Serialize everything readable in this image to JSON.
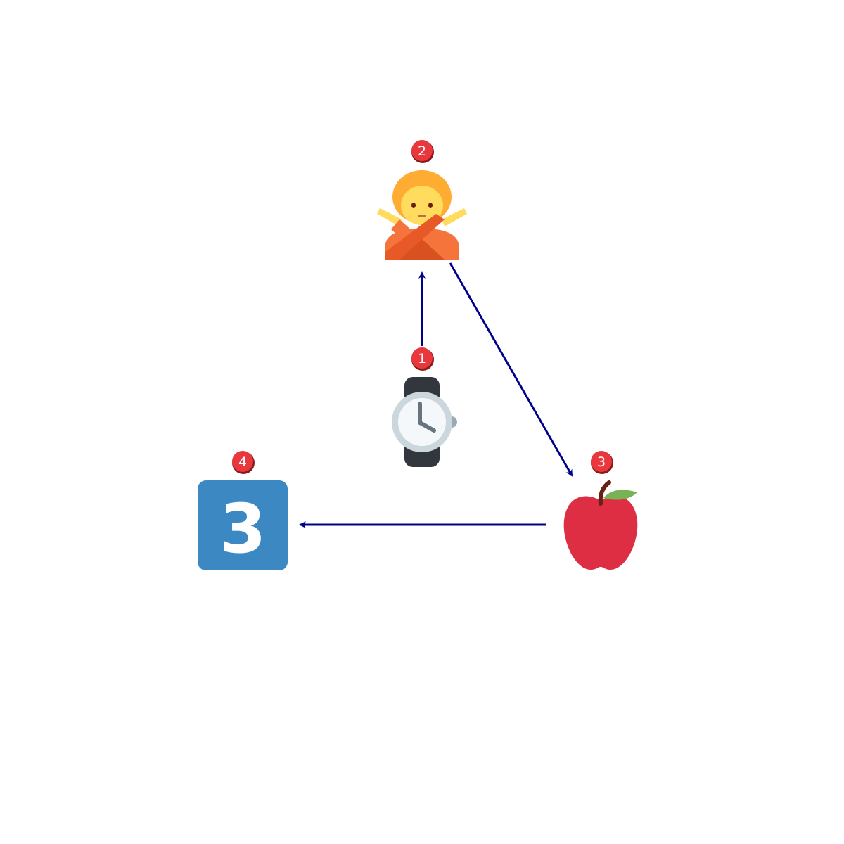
{
  "diagram": {
    "nodes": [
      {
        "id": "watch",
        "icon": "watch-icon",
        "badge": "1"
      },
      {
        "id": "gesture",
        "icon": "person-gesturing-no-icon",
        "badge": "2"
      },
      {
        "id": "apple",
        "icon": "red-apple-icon",
        "badge": "3"
      },
      {
        "id": "keycap",
        "icon": "keycap-digit-three-icon",
        "badge": "4",
        "label": "3"
      }
    ],
    "edges": [
      {
        "from": "watch",
        "to": "gesture"
      },
      {
        "from": "gesture",
        "to": "apple"
      },
      {
        "from": "apple",
        "to": "keycap"
      }
    ],
    "colors": {
      "arrow": "#00008b",
      "badge": "#e8383d",
      "keycap": "#3b88c3",
      "apple": "#dd2e44",
      "watch_band": "#31373d"
    }
  }
}
